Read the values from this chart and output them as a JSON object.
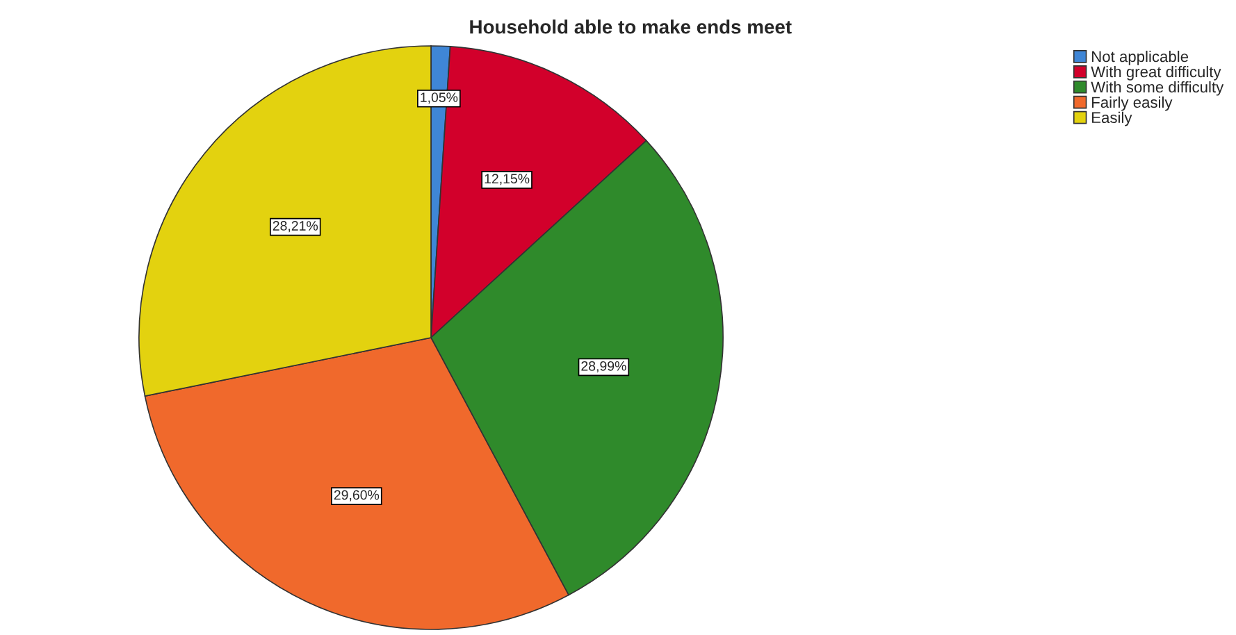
{
  "chart_data": {
    "type": "pie",
    "title": "Household able to make ends meet",
    "categories": [
      "Not applicable",
      "With great difficulty",
      "With some difficulty",
      "Fairly easily",
      "Easily"
    ],
    "values": [
      1.05,
      12.15,
      28.99,
      29.6,
      28.21
    ],
    "value_labels": [
      "1,05%",
      "12,15%",
      "28,99%",
      "29,60%",
      "28,21%"
    ],
    "colors": [
      "#3f86d6",
      "#d2002b",
      "#2f8a2b",
      "#f0692c",
      "#e3d20f"
    ],
    "legend": "top right"
  }
}
